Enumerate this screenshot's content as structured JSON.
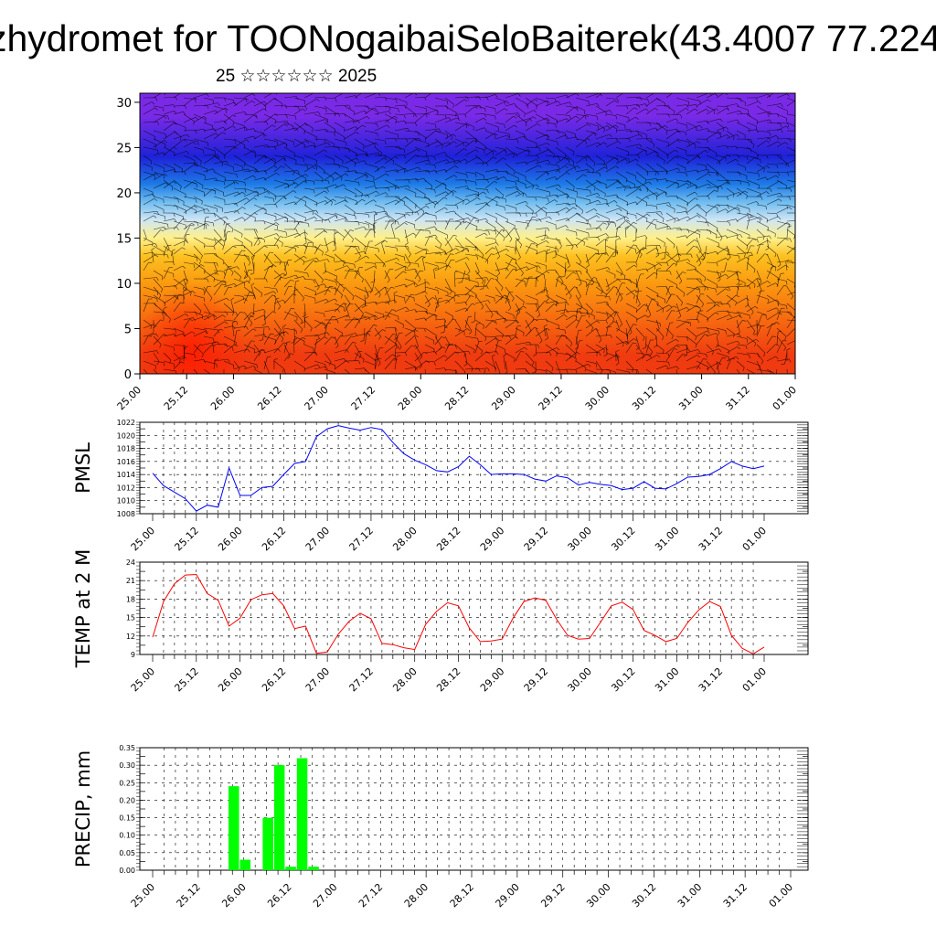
{
  "header": {
    "title": "zhydromet for TOONogaibaiSeloBaiterek(43.4007 77.224",
    "subtitle": "25 ☆☆☆☆☆☆ 2025"
  },
  "chart_data": [
    {
      "type": "heatmap",
      "title": "",
      "xlabel": "",
      "ylabel": "",
      "x_ticks": [
        "25.00",
        "25.12",
        "26.00",
        "26.12",
        "27.00",
        "27.12",
        "28.00",
        "28.12",
        "29.00",
        "29.12",
        "30.00",
        "30.12",
        "31.00",
        "31.12",
        "01.00"
      ],
      "y_ticks": [
        0,
        5,
        10,
        15,
        20,
        25,
        30
      ],
      "ylim": [
        0,
        31
      ],
      "color_bands": [
        {
          "from": 0,
          "to": 4,
          "color": "#f03a10"
        },
        {
          "from": 4,
          "to": 8,
          "color": "#f76a10"
        },
        {
          "from": 8,
          "to": 12,
          "color": "#fb9a10"
        },
        {
          "from": 12,
          "to": 14,
          "color": "#fdc020"
        },
        {
          "from": 14,
          "to": 16,
          "color": "#fff08a"
        },
        {
          "from": 16,
          "to": 18,
          "color": "#cfe6f4"
        },
        {
          "from": 18,
          "to": 20,
          "color": "#6fbcf0"
        },
        {
          "from": 20,
          "to": 22,
          "color": "#1d7ae6"
        },
        {
          "from": 22,
          "to": 26,
          "color": "#1e22d8"
        },
        {
          "from": 26,
          "to": 31,
          "color": "#7a2ae6"
        }
      ],
      "overlay": "wind barbs"
    },
    {
      "type": "line",
      "ylabel": "PMSL",
      "x_ticks": [
        "25.00",
        "25.12",
        "26.00",
        "26.12",
        "27.00",
        "27.12",
        "28.00",
        "28.12",
        "29.00",
        "29.12",
        "30.00",
        "30.12",
        "31.00",
        "31.12",
        "01.00"
      ],
      "y_ticks": [
        1008,
        1010,
        1012,
        1014,
        1016,
        1018,
        1020,
        1022
      ],
      "ylim": [
        1008,
        1022
      ],
      "grid": true,
      "series": [
        {
          "color": "#0000ff",
          "x": [
            0,
            0.125,
            0.25,
            0.375,
            0.5,
            0.625,
            0.75,
            0.875,
            1,
            1.125,
            1.25,
            1.375,
            1.5,
            1.625,
            1.75,
            1.875,
            2,
            2.125,
            2.25,
            2.375,
            2.5,
            2.625,
            2.75,
            2.875,
            3,
            3.125,
            3.25,
            3.375,
            3.5,
            3.625,
            3.75,
            3.875,
            4,
            4.125,
            4.25,
            4.375,
            4.5,
            4.625,
            4.75,
            4.875,
            5,
            5.125,
            5.25,
            5.375,
            5.5,
            5.625,
            5.75,
            5.875,
            6,
            6.125,
            6.25,
            6.375,
            6.5,
            6.625,
            6.75,
            6.875,
            7
          ],
          "values": [
            1014.2,
            1012.3,
            1011.3,
            1010.3,
            1008.4,
            1009.3,
            1009.0,
            1015.0,
            1010.8,
            1010.8,
            1012.0,
            1012.2,
            1014.0,
            1015.7,
            1016.0,
            1019.8,
            1021.0,
            1021.5,
            1021.1,
            1020.8,
            1021.2,
            1020.9,
            1018.9,
            1017.2,
            1016.2,
            1015.5,
            1014.6,
            1014.4,
            1015.2,
            1016.8,
            1015.5,
            1014.0,
            1014.1,
            1014.1,
            1014.0,
            1013.3,
            1013.0,
            1013.8,
            1013.5,
            1012.4,
            1012.8,
            1012.5,
            1012.3,
            1011.7,
            1011.9,
            1012.9,
            1011.9,
            1011.8,
            1012.6,
            1013.6,
            1013.7,
            1014.0,
            1014.9,
            1016.0,
            1015.3,
            1014.9,
            1015.3
          ]
        }
      ]
    },
    {
      "type": "line",
      "ylabel": "TEMP at 2 M",
      "x_ticks": [
        "25.00",
        "25.12",
        "26.00",
        "26.12",
        "27.00",
        "27.12",
        "28.00",
        "28.12",
        "29.00",
        "29.12",
        "30.00",
        "30.12",
        "31.00",
        "31.12",
        "01.00"
      ],
      "y_ticks": [
        9,
        12,
        15,
        18,
        21,
        24
      ],
      "ylim": [
        9,
        24
      ],
      "grid": true,
      "series": [
        {
          "color": "#ff0000",
          "x": [
            0,
            0.125,
            0.25,
            0.375,
            0.5,
            0.625,
            0.75,
            0.875,
            1,
            1.125,
            1.25,
            1.375,
            1.5,
            1.625,
            1.75,
            1.875,
            2,
            2.125,
            2.25,
            2.375,
            2.5,
            2.625,
            2.75,
            2.875,
            3,
            3.125,
            3.25,
            3.375,
            3.5,
            3.625,
            3.75,
            3.875,
            4,
            4.125,
            4.25,
            4.375,
            4.5,
            4.625,
            4.75,
            4.875,
            5,
            5.125,
            5.25,
            5.375,
            5.5,
            5.625,
            5.75,
            5.875,
            6,
            6.125,
            6.25,
            6.375,
            6.5,
            6.625,
            6.75,
            6.875,
            7
          ],
          "values": [
            11.8,
            17.6,
            20.5,
            21.9,
            22.0,
            18.9,
            17.8,
            13.6,
            14.9,
            17.9,
            18.7,
            18.9,
            16.9,
            13.2,
            13.6,
            9.2,
            9.4,
            12.3,
            14.4,
            15.7,
            14.8,
            10.8,
            10.6,
            10.1,
            9.8,
            13.9,
            16.0,
            17.4,
            16.9,
            13.3,
            11.1,
            11.2,
            11.5,
            14.9,
            17.6,
            18.2,
            17.8,
            14.7,
            12.1,
            11.5,
            11.6,
            14.2,
            16.9,
            17.5,
            16.3,
            12.9,
            12.1,
            11.1,
            11.6,
            14.2,
            16.2,
            17.6,
            16.8,
            12.1,
            10.0,
            9.1,
            10.2
          ]
        }
      ]
    },
    {
      "type": "bar",
      "ylabel": "PRECIP, mm",
      "x_ticks": [
        "25.00",
        "25.12",
        "26.00",
        "26.12",
        "27.00",
        "27.12",
        "28.00",
        "28.12",
        "29.00",
        "29.12",
        "30.00",
        "30.12",
        "31.00",
        "31.12",
        "01.00"
      ],
      "y_ticks": [
        "0.00",
        "0.05",
        "0.10",
        "0.15",
        "0.20",
        "0.25",
        "0.30",
        "0.35"
      ],
      "ylim": [
        0,
        0.35
      ],
      "grid": true,
      "bar_color": "#00ff00",
      "bars": [
        {
          "x": 0.875,
          "value": 0.24
        },
        {
          "x": 1.0,
          "value": 0.03
        },
        {
          "x": 1.25,
          "value": 0.15
        },
        {
          "x": 1.375,
          "value": 0.3
        },
        {
          "x": 1.5,
          "value": 0.01
        },
        {
          "x": 1.625,
          "value": 0.32
        },
        {
          "x": 1.75,
          "value": 0.01
        }
      ]
    }
  ]
}
